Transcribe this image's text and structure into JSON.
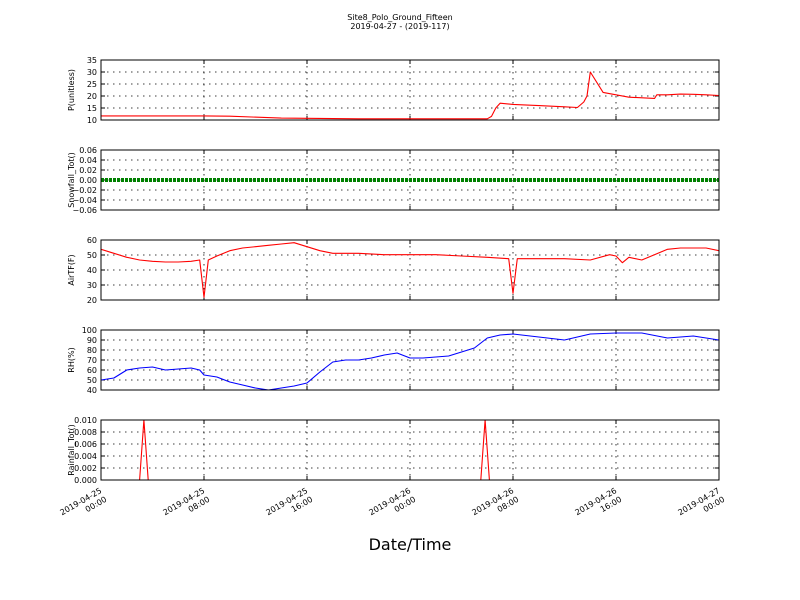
{
  "figure": {
    "title": "Site8_Polo_Ground_Fifteen",
    "subtitle": "2019-04-27 - (2019-117)",
    "xlabel": "Date/Time",
    "x_tick_labels": [
      {
        "line1": "2019-04-25",
        "line2": "00:00"
      },
      {
        "line1": "2019-04-25",
        "line2": "08:00"
      },
      {
        "line1": "2019-04-25",
        "line2": "16:00"
      },
      {
        "line1": "2019-04-26",
        "line2": "00:00"
      },
      {
        "line1": "2019-04-26",
        "line2": "08:00"
      },
      {
        "line1": "2019-04-26",
        "line2": "16:00"
      },
      {
        "line1": "2019-04-27",
        "line2": "00:00"
      }
    ]
  },
  "chart_data": [
    {
      "type": "line",
      "ylabel": "P(unitless)",
      "ylim": [
        10,
        35
      ],
      "yticks": [
        "10",
        "15",
        "20",
        "25",
        "30",
        "35"
      ],
      "xlim": [
        "2019-04-25 00:00",
        "2019-04-27 00:00"
      ],
      "grid": true,
      "series": [
        {
          "color": "#ff0000",
          "x": [
            "2019-04-25 00:00",
            "2019-04-25 08:00",
            "2019-04-25 10:00",
            "2019-04-25 14:00",
            "2019-04-25 20:00",
            "2019-04-26 06:00",
            "2019-04-26 06:20",
            "2019-04-26 06:40",
            "2019-04-26 07:00",
            "2019-04-26 08:00",
            "2019-04-26 10:00",
            "2019-04-26 12:00",
            "2019-04-26 13:00",
            "2019-04-26 13:30",
            "2019-04-26 13:45",
            "2019-04-26 14:00",
            "2019-04-26 15:00",
            "2019-04-26 17:00",
            "2019-04-26 19:00",
            "2019-04-26 19:10",
            "2019-04-26 20:00",
            "2019-04-26 21:00",
            "2019-04-26 22:00",
            "2019-04-26 23:00",
            "2019-04-27 00:00"
          ],
          "y": [
            11.7,
            11.7,
            11.6,
            10.8,
            10.5,
            10.5,
            11.5,
            15.0,
            17.0,
            16.5,
            16.0,
            15.5,
            15.2,
            17.5,
            20.0,
            30.0,
            21.5,
            19.5,
            19.0,
            20.5,
            20.5,
            20.8,
            20.7,
            20.5,
            20.2
          ]
        }
      ]
    },
    {
      "type": "line",
      "ylabel": "Snowfall_Tot()",
      "ylim": [
        -0.06,
        0.06
      ],
      "yticks": [
        "−0.06",
        "−0.04",
        "−0.02",
        "0.00",
        "0.02",
        "0.04",
        "0.06"
      ],
      "xlim": [
        "2019-04-25 00:00",
        "2019-04-27 00:00"
      ],
      "grid": true,
      "series": [
        {
          "color": "#008000",
          "x": [
            "2019-04-25 00:00",
            "2019-04-27 00:00"
          ],
          "y": [
            0.0,
            0.0
          ]
        }
      ]
    },
    {
      "type": "line",
      "ylabel": "AirTF(F)",
      "ylim": [
        20,
        65
      ],
      "yticks": [
        "20",
        "30",
        "40",
        "50",
        "60"
      ],
      "xlim": [
        "2019-04-25 00:00",
        "2019-04-27 00:00"
      ],
      "grid": true,
      "series": [
        {
          "color": "#ff0000",
          "x": [
            "2019-04-25 00:00",
            "2019-04-25 01:00",
            "2019-04-25 02:00",
            "2019-04-25 03:00",
            "2019-04-25 04:00",
            "2019-04-25 05:00",
            "2019-04-25 06:00",
            "2019-04-25 07:00",
            "2019-04-25 07:40",
            "2019-04-25 08:00",
            "2019-04-25 08:20",
            "2019-04-25 09:00",
            "2019-04-25 10:00",
            "2019-04-25 11:00",
            "2019-04-25 12:00",
            "2019-04-25 13:00",
            "2019-04-25 14:00",
            "2019-04-25 15:00",
            "2019-04-25 16:00",
            "2019-04-25 17:00",
            "2019-04-25 18:00",
            "2019-04-25 20:00",
            "2019-04-25 22:00",
            "2019-04-26 00:00",
            "2019-04-26 02:00",
            "2019-04-26 04:00",
            "2019-04-26 06:00",
            "2019-04-26 07:40",
            "2019-04-26 08:00",
            "2019-04-26 08:20",
            "2019-04-26 10:00",
            "2019-04-26 12:00",
            "2019-04-26 14:00",
            "2019-04-26 15:30",
            "2019-04-26 16:00",
            "2019-04-26 16:30",
            "2019-04-26 17:00",
            "2019-04-26 18:00",
            "2019-04-26 20:00",
            "2019-04-26 21:00",
            "2019-04-26 22:00",
            "2019-04-26 23:00",
            "2019-04-27 00:00"
          ],
          "y": [
            58,
            55,
            52,
            50,
            49,
            48.5,
            48.5,
            49,
            50,
            22,
            50,
            53,
            57,
            59,
            60,
            61,
            62,
            63,
            60,
            57,
            55,
            55,
            54,
            54,
            54,
            53,
            52,
            51,
            25,
            51,
            51,
            51,
            50,
            54,
            53,
            48,
            52,
            50,
            58,
            59,
            59,
            59,
            57
          ]
        }
      ]
    },
    {
      "type": "line",
      "ylabel": "RH(%)",
      "ylim": [
        40,
        100
      ],
      "yticks": [
        "40",
        "50",
        "60",
        "70",
        "80",
        "90",
        "100"
      ],
      "xlim": [
        "2019-04-25 00:00",
        "2019-04-27 00:00"
      ],
      "grid": true,
      "series": [
        {
          "color": "#0000ff",
          "x": [
            "2019-04-25 00:00",
            "2019-04-25 01:00",
            "2019-04-25 02:00",
            "2019-04-25 03:00",
            "2019-04-25 04:00",
            "2019-04-25 05:00",
            "2019-04-25 06:00",
            "2019-04-25 07:00",
            "2019-04-25 07:40",
            "2019-04-25 08:00",
            "2019-04-25 09:00",
            "2019-04-25 10:00",
            "2019-04-25 11:00",
            "2019-04-25 12:00",
            "2019-04-25 13:00",
            "2019-04-25 14:00",
            "2019-04-25 15:00",
            "2019-04-25 16:00",
            "2019-04-25 17:00",
            "2019-04-25 18:00",
            "2019-04-25 19:00",
            "2019-04-25 20:00",
            "2019-04-25 21:00",
            "2019-04-25 22:00",
            "2019-04-25 23:00",
            "2019-04-26 00:00",
            "2019-04-26 01:00",
            "2019-04-26 02:00",
            "2019-04-26 03:00",
            "2019-04-26 04:00",
            "2019-04-26 05:00",
            "2019-04-26 06:00",
            "2019-04-26 07:00",
            "2019-04-26 08:00",
            "2019-04-26 10:00",
            "2019-04-26 12:00",
            "2019-04-26 14:00",
            "2019-04-26 16:00",
            "2019-04-26 18:00",
            "2019-04-26 20:00",
            "2019-04-26 22:00",
            "2019-04-27 00:00"
          ],
          "y": [
            50,
            52,
            60,
            62,
            63,
            60,
            61,
            62,
            60,
            55,
            53,
            48,
            45,
            42,
            40,
            42,
            44,
            47,
            58,
            68,
            70,
            70,
            72,
            75,
            77,
            72,
            72,
            73,
            74,
            78,
            82,
            92,
            95,
            96,
            93,
            90,
            96,
            97,
            97,
            92,
            94,
            90
          ]
        }
      ]
    },
    {
      "type": "line",
      "ylabel": "Rainfall_Tot()",
      "ylim": [
        0,
        0.01
      ],
      "yticks": [
        "0.000",
        "0.002",
        "0.004",
        "0.006",
        "0.008",
        "0.010"
      ],
      "xlim": [
        "2019-04-25 00:00",
        "2019-04-27 00:00"
      ],
      "grid": true,
      "series": [
        {
          "color": "#ff0000",
          "x": [
            "2019-04-25 00:00",
            "2019-04-25 03:00",
            "2019-04-25 03:20",
            "2019-04-25 03:40",
            "2019-04-26 05:30",
            "2019-04-26 05:50",
            "2019-04-26 06:10",
            "2019-04-27 00:00"
          ],
          "y": [
            0,
            0,
            0.01,
            0,
            0,
            0.01,
            0,
            0
          ]
        }
      ]
    }
  ]
}
